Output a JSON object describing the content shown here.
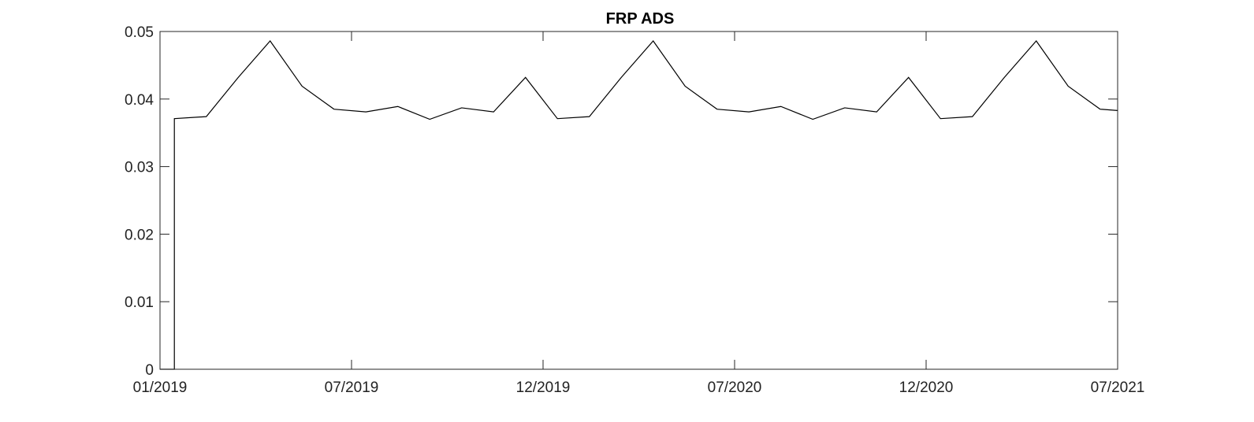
{
  "chart_data": {
    "type": "line",
    "title": "FRP ADS",
    "xlabel": "",
    "ylabel": "",
    "x_range": [
      0,
      30
    ],
    "ylim": [
      0,
      0.05
    ],
    "y_ticks": [
      {
        "value": 0,
        "label": "0"
      },
      {
        "value": 0.01,
        "label": "0.01"
      },
      {
        "value": 0.02,
        "label": "0.02"
      },
      {
        "value": 0.03,
        "label": "0.03"
      },
      {
        "value": 0.04,
        "label": "0.04"
      },
      {
        "value": 0.05,
        "label": "0.05"
      }
    ],
    "x_ticks": [
      {
        "value": 0,
        "label": "01/2019"
      },
      {
        "value": 6,
        "label": "07/2019"
      },
      {
        "value": 12,
        "label": "12/2019"
      },
      {
        "value": 18,
        "label": "07/2020"
      },
      {
        "value": 24,
        "label": "12/2020"
      },
      {
        "value": 30,
        "label": "07/2021"
      }
    ],
    "series": [
      {
        "name": "FRP ADS",
        "color": "#000000",
        "x": [
          0,
          0.45,
          0.45,
          1.45,
          2.45,
          3.45,
          4.45,
          5.45,
          6.45,
          7.45,
          8.45,
          9.45,
          10.45,
          11.45,
          12.45,
          13.45,
          14.45,
          15.45,
          16.45,
          17.45,
          18.45,
          19.45,
          20.45,
          21.45,
          22.45,
          23.45,
          24.45,
          25.45,
          26.45,
          27.45,
          28.45,
          29.45,
          30
        ],
        "values": [
          0,
          0,
          0.0371,
          0.0374,
          0.0432,
          0.0486,
          0.0419,
          0.0385,
          0.0381,
          0.0389,
          0.037,
          0.0387,
          0.0381,
          0.0432,
          0.0371,
          0.0374,
          0.0432,
          0.0486,
          0.0419,
          0.0385,
          0.0381,
          0.0389,
          0.037,
          0.0387,
          0.0381,
          0.0432,
          0.0371,
          0.0374,
          0.0432,
          0.0486,
          0.0419,
          0.0385,
          0.0383
        ]
      }
    ]
  }
}
